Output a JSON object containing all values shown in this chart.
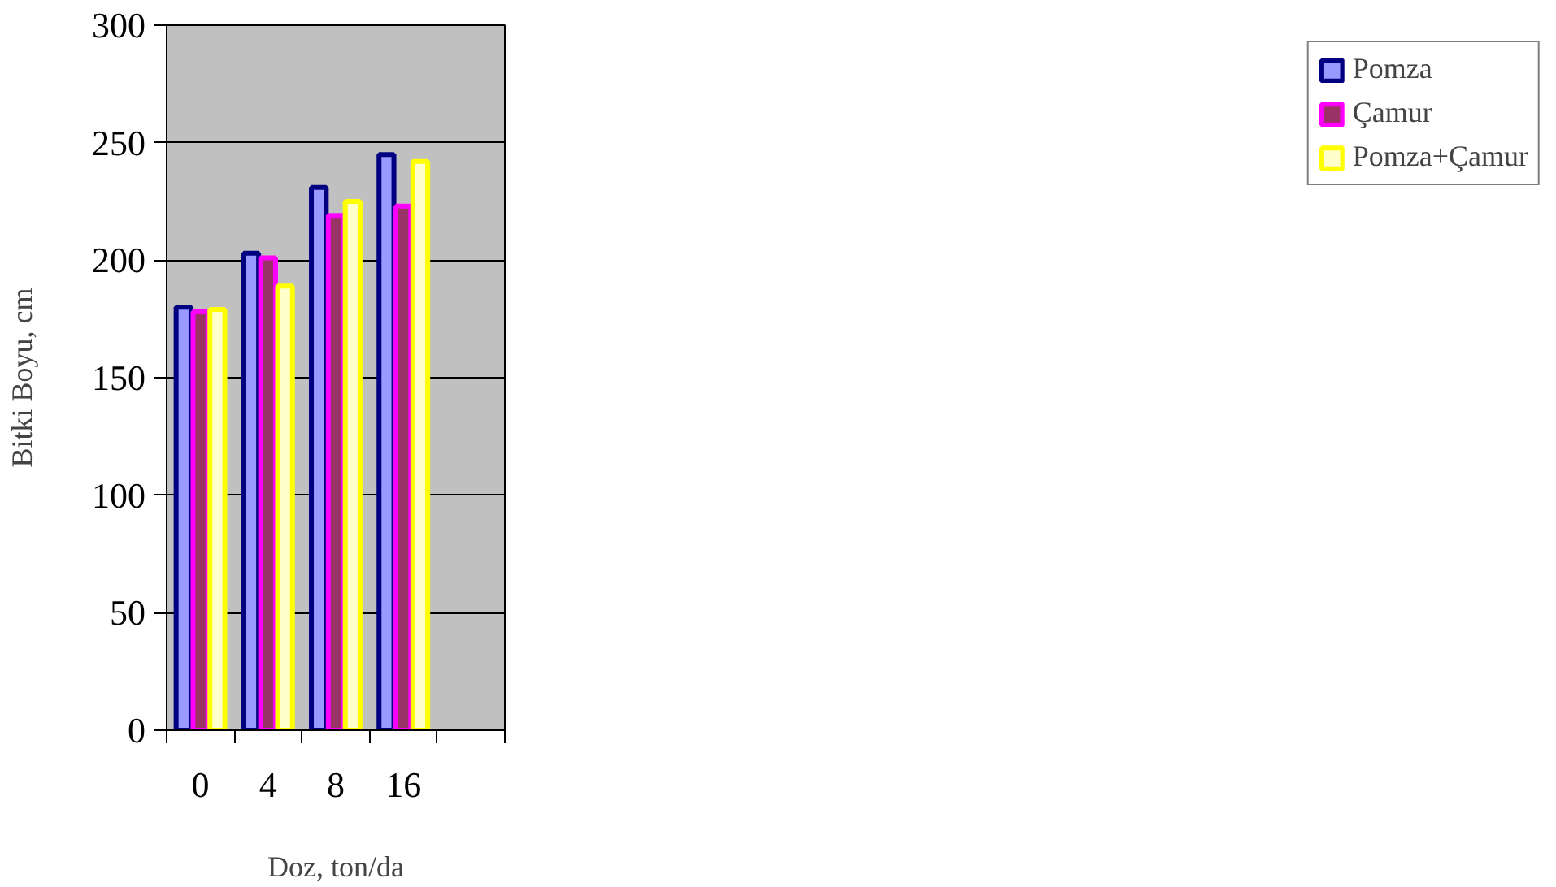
{
  "chart_data": {
    "type": "bar",
    "xlabel": "Doz, ton/da",
    "ylabel": "Bitki Boyu, cm",
    "categories": [
      "0",
      "4",
      "8",
      "16",
      null
    ],
    "series": [
      {
        "name": "Pomza",
        "color": "#9999ff",
        "values": [
          180,
          203,
          231,
          245,
          null
        ]
      },
      {
        "name": "Çamur",
        "color": "#993366",
        "values": [
          178,
          201,
          219,
          223,
          null
        ]
      },
      {
        "name": "Pomza+Çamur",
        "color": "#ffffcc",
        "values": [
          179,
          189,
          225,
          242,
          null
        ]
      }
    ],
    "ylim": [
      0,
      300
    ],
    "yticks": [
      0,
      50,
      100,
      150,
      200,
      250,
      300
    ],
    "grid": "y",
    "legend": "right"
  }
}
